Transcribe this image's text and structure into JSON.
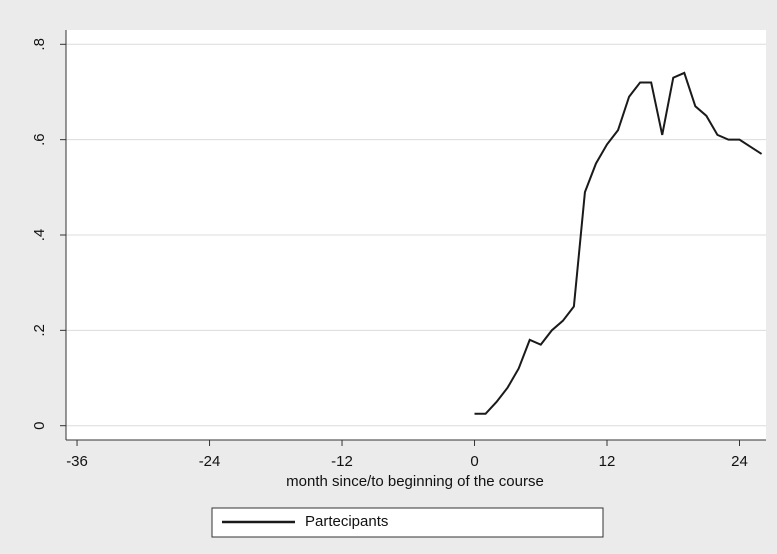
{
  "chart_data": {
    "type": "line",
    "x_label": "month since/to beginning of the course",
    "x": [
      0,
      1,
      2,
      3,
      4,
      5,
      6,
      7,
      8,
      9,
      10,
      11,
      12,
      13,
      14,
      15,
      16,
      17,
      18,
      19,
      20,
      21,
      22,
      23,
      24,
      25,
      26
    ],
    "series": [
      {
        "name": "Partecipants",
        "color": "#1a1a1a",
        "values": [
          0.025,
          0.025,
          0.05,
          0.08,
          0.12,
          0.18,
          0.17,
          0.2,
          0.22,
          0.25,
          0.49,
          0.55,
          0.59,
          0.62,
          0.69,
          0.72,
          0.72,
          0.61,
          0.73,
          0.74,
          0.67,
          0.65,
          0.61,
          0.6,
          0.6,
          0.585,
          0.57
        ]
      }
    ],
    "xlim": [
      -37,
      26.4
    ],
    "xticks": [
      -36,
      -24,
      -12,
      0,
      12,
      24
    ],
    "ylim": [
      -0.03,
      0.83
    ],
    "yticks": [
      {
        "value": 0,
        "label": "0"
      },
      {
        "value": 0.2,
        "label": ".2"
      },
      {
        "value": 0.4,
        "label": ".4"
      },
      {
        "value": 0.6,
        "label": ".6"
      },
      {
        "value": 0.8,
        "label": ".8"
      }
    ],
    "grid": true
  }
}
